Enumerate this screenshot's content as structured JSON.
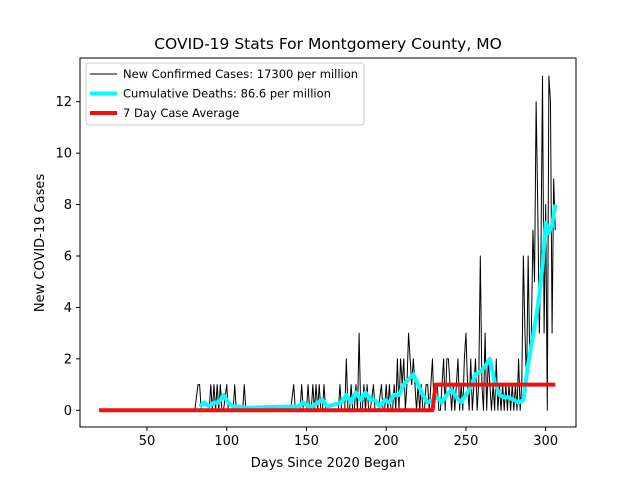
{
  "chart_data": {
    "type": "line",
    "title": "COVID-19 Stats For Montgomery County, MO",
    "xlabel": "Days Since 2020 Began",
    "ylabel": "New COVID-19 Cases",
    "xlim": [
      8,
      319
    ],
    "ylim": [
      -0.65,
      13.7
    ],
    "xticks": [
      50,
      100,
      150,
      200,
      250,
      300
    ],
    "yticks": [
      0,
      2,
      4,
      6,
      8,
      10,
      12
    ],
    "grid": false,
    "legend_position": "top-left",
    "series": [
      {
        "name": "New Confirmed Cases: 17300 per million",
        "color": "#000000",
        "line_width": 1,
        "points": [
          [
            20,
            0
          ],
          [
            80,
            0
          ],
          [
            82,
            1
          ],
          [
            83,
            1
          ],
          [
            84,
            0
          ],
          [
            89,
            0
          ],
          [
            90,
            1
          ],
          [
            91,
            0
          ],
          [
            92,
            1
          ],
          [
            93,
            0
          ],
          [
            94,
            1
          ],
          [
            95,
            0
          ],
          [
            96,
            1
          ],
          [
            97,
            0
          ],
          [
            98,
            0
          ],
          [
            100,
            1
          ],
          [
            101,
            0
          ],
          [
            104,
            0
          ],
          [
            105,
            1
          ],
          [
            106,
            0
          ],
          [
            110,
            0
          ],
          [
            111,
            1
          ],
          [
            112,
            0
          ],
          [
            140,
            0
          ],
          [
            142,
            1
          ],
          [
            143,
            0
          ],
          [
            146,
            0
          ],
          [
            147,
            1
          ],
          [
            148,
            0
          ],
          [
            150,
            0
          ],
          [
            151,
            1
          ],
          [
            152,
            0
          ],
          [
            153,
            0
          ],
          [
            154,
            1
          ],
          [
            155,
            0
          ],
          [
            156,
            1
          ],
          [
            157,
            0
          ],
          [
            158,
            1
          ],
          [
            159,
            0
          ],
          [
            160,
            0
          ],
          [
            161,
            1
          ],
          [
            162,
            0
          ],
          [
            170,
            0
          ],
          [
            171,
            1
          ],
          [
            172,
            0
          ],
          [
            174,
            0
          ],
          [
            175,
            2
          ],
          [
            176,
            0
          ],
          [
            177,
            0
          ],
          [
            178,
            1
          ],
          [
            179,
            0
          ],
          [
            180,
            0
          ],
          [
            181,
            1
          ],
          [
            182,
            0
          ],
          [
            183,
            3
          ],
          [
            184,
            0
          ],
          [
            185,
            0
          ],
          [
            186,
            1
          ],
          [
            187,
            0
          ],
          [
            188,
            1
          ],
          [
            189,
            0
          ],
          [
            190,
            0
          ],
          [
            192,
            1
          ],
          [
            193,
            0
          ],
          [
            195,
            0
          ],
          [
            197,
            1
          ],
          [
            198,
            0
          ],
          [
            199,
            0
          ],
          [
            200,
            1
          ],
          [
            201,
            0
          ],
          [
            202,
            1
          ],
          [
            203,
            0
          ],
          [
            204,
            0
          ],
          [
            205,
            1
          ],
          [
            206,
            0
          ],
          [
            207,
            2
          ],
          [
            208,
            0
          ],
          [
            209,
            2
          ],
          [
            210,
            1
          ],
          [
            211,
            2
          ],
          [
            212,
            0
          ],
          [
            213,
            1
          ],
          [
            214,
            3
          ],
          [
            215,
            2
          ],
          [
            216,
            1
          ],
          [
            217,
            2
          ],
          [
            218,
            1
          ],
          [
            219,
            0
          ],
          [
            220,
            1
          ],
          [
            221,
            0
          ],
          [
            222,
            1
          ],
          [
            223,
            0
          ],
          [
            224,
            0
          ],
          [
            225,
            1
          ],
          [
            226,
            1
          ],
          [
            227,
            0
          ],
          [
            228,
            1
          ],
          [
            229,
            2
          ],
          [
            230,
            0
          ],
          [
            231,
            1
          ],
          [
            232,
            1
          ],
          [
            233,
            0
          ],
          [
            234,
            0
          ],
          [
            235,
            1
          ],
          [
            236,
            2
          ],
          [
            237,
            0
          ],
          [
            238,
            2
          ],
          [
            239,
            2
          ],
          [
            240,
            1
          ],
          [
            241,
            0
          ],
          [
            242,
            1
          ],
          [
            243,
            0
          ],
          [
            244,
            1
          ],
          [
            245,
            2
          ],
          [
            246,
            0
          ],
          [
            247,
            1
          ],
          [
            248,
            0
          ],
          [
            249,
            2
          ],
          [
            250,
            3
          ],
          [
            251,
            1
          ],
          [
            252,
            0
          ],
          [
            253,
            2
          ],
          [
            254,
            0
          ],
          [
            255,
            1
          ],
          [
            256,
            2
          ],
          [
            257,
            0
          ],
          [
            258,
            1
          ],
          [
            259,
            6
          ],
          [
            260,
            1
          ],
          [
            261,
            0
          ],
          [
            262,
            3
          ],
          [
            263,
            0
          ],
          [
            264,
            2
          ],
          [
            265,
            1
          ],
          [
            266,
            0
          ],
          [
            267,
            1
          ],
          [
            268,
            0
          ],
          [
            269,
            2
          ],
          [
            270,
            0
          ],
          [
            271,
            1
          ],
          [
            272,
            0
          ],
          [
            273,
            1
          ],
          [
            274,
            0
          ],
          [
            275,
            1
          ],
          [
            276,
            0
          ],
          [
            277,
            1
          ],
          [
            278,
            0
          ],
          [
            279,
            1
          ],
          [
            280,
            0
          ],
          [
            281,
            1
          ],
          [
            282,
            0
          ],
          [
            283,
            2
          ],
          [
            284,
            0
          ],
          [
            285,
            1
          ],
          [
            286,
            6
          ],
          [
            287,
            3
          ],
          [
            288,
            1
          ],
          [
            289,
            6
          ],
          [
            290,
            2
          ],
          [
            291,
            3
          ],
          [
            292,
            7
          ],
          [
            293,
            5
          ],
          [
            294,
            12
          ],
          [
            295,
            8
          ],
          [
            296,
            3
          ],
          [
            297,
            6
          ],
          [
            298,
            13
          ],
          [
            299,
            3
          ],
          [
            300,
            8
          ],
          [
            301,
            0
          ],
          [
            302,
            13
          ],
          [
            303,
            12
          ],
          [
            304,
            3
          ],
          [
            305,
            9
          ],
          [
            306,
            7
          ]
        ]
      },
      {
        "name": "Cumulative Deaths: 86.6 per million",
        "color": "#00ffff",
        "line_width": 4,
        "points": [
          [
            83,
            0.15
          ],
          [
            86,
            0.3
          ],
          [
            89,
            0.15
          ],
          [
            92,
            0.3
          ],
          [
            95,
            0.3
          ],
          [
            98,
            0.6
          ],
          [
            101,
            0.3
          ],
          [
            104,
            0.15
          ],
          [
            107,
            0.15
          ],
          [
            110,
            0.1
          ],
          [
            113,
            0.1
          ],
          [
            145,
            0.15
          ],
          [
            148,
            0.3
          ],
          [
            151,
            0.15
          ],
          [
            154,
            0.15
          ],
          [
            157,
            0.3
          ],
          [
            160,
            0.4
          ],
          [
            163,
            0.15
          ],
          [
            172,
            0.3
          ],
          [
            175,
            0.6
          ],
          [
            178,
            0.3
          ],
          [
            181,
            0.7
          ],
          [
            184,
            0.4
          ],
          [
            187,
            0.7
          ],
          [
            190,
            0.4
          ],
          [
            193,
            0.4
          ],
          [
            196,
            0.15
          ],
          [
            199,
            0.4
          ],
          [
            202,
            0.3
          ],
          [
            205,
            0.6
          ],
          [
            208,
            0.6
          ],
          [
            211,
            1.0
          ],
          [
            214,
            1.2
          ],
          [
            217,
            1.4
          ],
          [
            220,
            1.0
          ],
          [
            223,
            0.6
          ],
          [
            226,
            0.3
          ],
          [
            229,
            0.4
          ],
          [
            232,
            0.5
          ],
          [
            235,
            0.3
          ],
          [
            238,
            0.6
          ],
          [
            241,
            0.8
          ],
          [
            244,
            0.5
          ],
          [
            247,
            0.3
          ],
          [
            250,
            0.6
          ],
          [
            253,
            0.9
          ],
          [
            256,
            1.4
          ],
          [
            259,
            1.5
          ],
          [
            262,
            1.7
          ],
          [
            265,
            2.0
          ],
          [
            268,
            1.1
          ],
          [
            271,
            0.6
          ],
          [
            274,
            0.5
          ],
          [
            277,
            0.5
          ],
          [
            280,
            0.4
          ],
          [
            283,
            0.3
          ],
          [
            286,
            0.4
          ],
          [
            289,
            1.8
          ],
          [
            292,
            2.9
          ],
          [
            295,
            4.0
          ],
          [
            298,
            5.6
          ],
          [
            300,
            7.3
          ],
          [
            302,
            6.9
          ],
          [
            304,
            7.2
          ],
          [
            306,
            8.0
          ]
        ]
      },
      {
        "name": "7 Day Case Average",
        "color": "#ee1111",
        "line_width": 4,
        "points": [
          [
            20,
            0
          ],
          [
            229,
            0
          ],
          [
            231,
            1
          ],
          [
            306,
            1
          ]
        ]
      }
    ]
  }
}
